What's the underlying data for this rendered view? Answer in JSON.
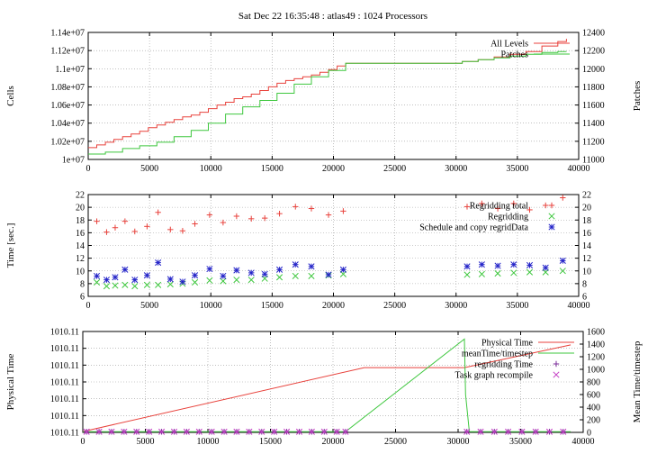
{
  "title": "Sat Dec 22 16:35:48 : atlas49 : 1024 Processors",
  "colors": {
    "red": "#e8423c",
    "green": "#3ec73e",
    "blue": "#2424c8",
    "magenta": "#c43cc4",
    "purple": "#7a2a9a",
    "ylabel_red": "#c8201e",
    "ylabel_green": "#2eae2e",
    "grid": "#9a9a9a"
  },
  "chart_data": [
    {
      "type": "line",
      "xlabel": "",
      "ylabel": "Cells",
      "y2label": "Patches",
      "xlim": [
        0,
        40000
      ],
      "ylim": [
        10000000,
        11400000
      ],
      "y2lim": [
        11000,
        12400
      ],
      "xticks": [
        "0",
        "5000",
        "10000",
        "15000",
        "20000",
        "25000",
        "30000",
        "35000",
        "40000"
      ],
      "yticks": [
        "1e+07",
        "1.02e+07",
        "1.04e+07",
        "1.06e+07",
        "1.08e+07",
        "1.1e+07",
        "1.12e+07",
        "1.14e+07"
      ],
      "y2ticks": [
        "11000",
        "11200",
        "11400",
        "11600",
        "11800",
        "12000",
        "12200",
        "12400"
      ],
      "grid": true,
      "legend_position": "top-right",
      "series": [
        {
          "name": "All Levels",
          "color": "red",
          "axis": "y",
          "x": [
            0,
            700,
            1400,
            2100,
            2800,
            3500,
            4200,
            4900,
            5600,
            6300,
            7000,
            7700,
            8400,
            9100,
            9800,
            10500,
            11200,
            11900,
            12600,
            13300,
            14000,
            14700,
            15400,
            16100,
            16800,
            17500,
            18200,
            18900,
            19600,
            20300,
            21000,
            30500,
            31800,
            33100,
            34400,
            35700,
            37000,
            38300,
            39000
          ],
          "values": [
            10130000,
            10160000,
            10190000,
            10220000,
            10250000,
            10280000,
            10310000,
            10350000,
            10380000,
            10410000,
            10440000,
            10470000,
            10490000,
            10520000,
            10560000,
            10600000,
            10630000,
            10670000,
            10690000,
            10720000,
            10760000,
            10800000,
            10840000,
            10870000,
            10890000,
            10910000,
            10930000,
            10960000,
            10990000,
            11030000,
            11060000,
            11080000,
            11100000,
            11130000,
            11160000,
            11190000,
            11250000,
            11300000,
            11330000
          ]
        },
        {
          "name": "Patches",
          "color": "green",
          "axis": "y2",
          "x": [
            0,
            1400,
            2800,
            4200,
            5600,
            7000,
            8400,
            9800,
            11200,
            12600,
            14000,
            15400,
            16800,
            18200,
            19600,
            21000,
            30500,
            31800,
            33100,
            34400,
            35700,
            37000,
            38300,
            39000
          ],
          "values": [
            11060,
            11080,
            11120,
            11150,
            11190,
            11250,
            11320,
            11400,
            11500,
            11580,
            11650,
            11730,
            11830,
            11910,
            11980,
            12060,
            12080,
            12100,
            12120,
            12140,
            12160,
            12180,
            12190,
            12190
          ]
        }
      ]
    },
    {
      "type": "scatter",
      "xlabel": "",
      "ylabel": "Time [sec.]",
      "xlim": [
        0,
        40000
      ],
      "ylim": [
        6,
        22
      ],
      "xticks": [
        "0",
        "5000",
        "10000",
        "15000",
        "20000",
        "25000",
        "30000",
        "35000",
        "40000"
      ],
      "yticks": [
        "6",
        "8",
        "10",
        "12",
        "14",
        "16",
        "18",
        "20",
        "22"
      ],
      "grid": true,
      "legend_position": "top-right",
      "series": [
        {
          "name": "Regridding total",
          "color": "red",
          "marker": "plus",
          "x": [
            700,
            1500,
            2200,
            3000,
            3800,
            4800,
            5700,
            6700,
            7700,
            8700,
            9900,
            11000,
            12100,
            13300,
            14400,
            15600,
            16900,
            18200,
            19600,
            20800,
            30900,
            32100,
            33400,
            34700,
            36000,
            37300,
            38700
          ],
          "values": [
            17.8,
            16.1,
            16.8,
            17.8,
            16.2,
            17.0,
            19.2,
            16.5,
            16.3,
            17.4,
            18.8,
            17.6,
            18.6,
            18.2,
            18.3,
            19.0,
            20.1,
            19.8,
            18.8,
            19.4,
            20.1,
            20.6,
            19.8,
            20.6,
            19.6,
            20.3,
            21.5
          ]
        },
        {
          "name": "Regridding",
          "color": "green",
          "marker": "x",
          "x": [
            700,
            1500,
            2200,
            3000,
            3800,
            4800,
            5700,
            6700,
            7700,
            8700,
            9900,
            11000,
            12100,
            13300,
            14400,
            15600,
            16900,
            18200,
            19600,
            20800,
            30900,
            32100,
            33400,
            34700,
            36000,
            37300,
            38700
          ],
          "values": [
            8.2,
            7.6,
            7.7,
            7.8,
            7.6,
            7.8,
            7.8,
            7.9,
            8.0,
            8.2,
            8.5,
            8.4,
            8.6,
            8.6,
            8.8,
            9.0,
            9.2,
            9.2,
            9.3,
            9.5,
            9.4,
            9.5,
            9.6,
            9.7,
            9.8,
            9.8,
            10.0
          ]
        },
        {
          "name": "Schedule and copy regridData",
          "color": "blue",
          "marker": "star",
          "x": [
            700,
            1500,
            2200,
            3000,
            3800,
            4800,
            5700,
            6700,
            7700,
            8700,
            9900,
            11000,
            12100,
            13300,
            14400,
            15600,
            16900,
            18200,
            19600,
            20800,
            30900,
            32100,
            33400,
            34700,
            36000,
            37300,
            38700
          ],
          "values": [
            9.2,
            8.6,
            9.0,
            10.2,
            8.6,
            9.3,
            11.3,
            8.7,
            8.3,
            9.3,
            10.3,
            9.2,
            10.1,
            9.7,
            9.5,
            10.2,
            11.0,
            10.7,
            9.4,
            10.2,
            10.7,
            11.0,
            10.8,
            11.0,
            10.9,
            10.5,
            11.6
          ]
        }
      ]
    },
    {
      "type": "line",
      "xlabel": "",
      "ylabel": "Physical Time",
      "y2label": "Mean Time/timestep",
      "xlim": [
        0,
        40000
      ],
      "ylim": [
        0,
        6
      ],
      "y2lim": [
        0,
        1600
      ],
      "xticks": [
        "0",
        "5000",
        "10000",
        "15000",
        "20000",
        "25000",
        "30000",
        "35000",
        "40000"
      ],
      "yticks": [
        "1010.11",
        "1010.11",
        "1010.11",
        "1010.11",
        "1010.11",
        "1010.11",
        "1010.11"
      ],
      "y2ticks": [
        "0",
        "200",
        "400",
        "600",
        "800",
        "1000",
        "1200",
        "1400",
        "1600"
      ],
      "grid": true,
      "legend_position": "top-right",
      "series": [
        {
          "name": "Physical Time",
          "color": "red",
          "axis": "y",
          "x": [
            0,
            22500,
            30500,
            39000
          ],
          "values": [
            0.05,
            3.85,
            3.85,
            5.2
          ]
        },
        {
          "name": "meanTime/timestep",
          "color": "green",
          "axis": "y2",
          "x": [
            0,
            21000,
            30500,
            30600,
            30900,
            39000
          ],
          "values": [
            10,
            10,
            1480,
            600,
            10,
            10
          ]
        },
        {
          "name": "regridding Time",
          "color": "purple",
          "marker": "plus",
          "axis": "y2",
          "x": [
            300,
            1300,
            2300,
            3300,
            4300,
            5300,
            6300,
            7300,
            8300,
            9300,
            10300,
            11300,
            12300,
            13300,
            14300,
            15300,
            16300,
            17300,
            18300,
            19300,
            20300,
            21000,
            30700,
            31800,
            32900,
            34000,
            35100,
            36200,
            37300,
            38400
          ],
          "values": [
            10,
            10,
            10,
            10,
            10,
            10,
            10,
            10,
            10,
            10,
            10,
            10,
            10,
            10,
            10,
            10,
            10,
            10,
            10,
            10,
            10,
            10,
            10,
            10,
            10,
            10,
            10,
            10,
            10,
            10
          ]
        },
        {
          "name": "Task graph recompile",
          "color": "magenta",
          "marker": "x",
          "axis": "y2",
          "x": [
            300,
            1300,
            2300,
            3300,
            4300,
            5300,
            6300,
            7300,
            8300,
            9300,
            10300,
            11300,
            12300,
            13300,
            14300,
            15300,
            16300,
            17300,
            18300,
            19300,
            20300,
            21000,
            30700,
            31800,
            32900,
            34000,
            35100,
            36200,
            37300,
            38400
          ],
          "values": [
            10,
            10,
            10,
            10,
            10,
            10,
            10,
            10,
            10,
            10,
            10,
            10,
            10,
            10,
            10,
            10,
            10,
            10,
            10,
            10,
            10,
            10,
            10,
            10,
            10,
            10,
            10,
            10,
            10,
            10
          ]
        }
      ]
    }
  ]
}
